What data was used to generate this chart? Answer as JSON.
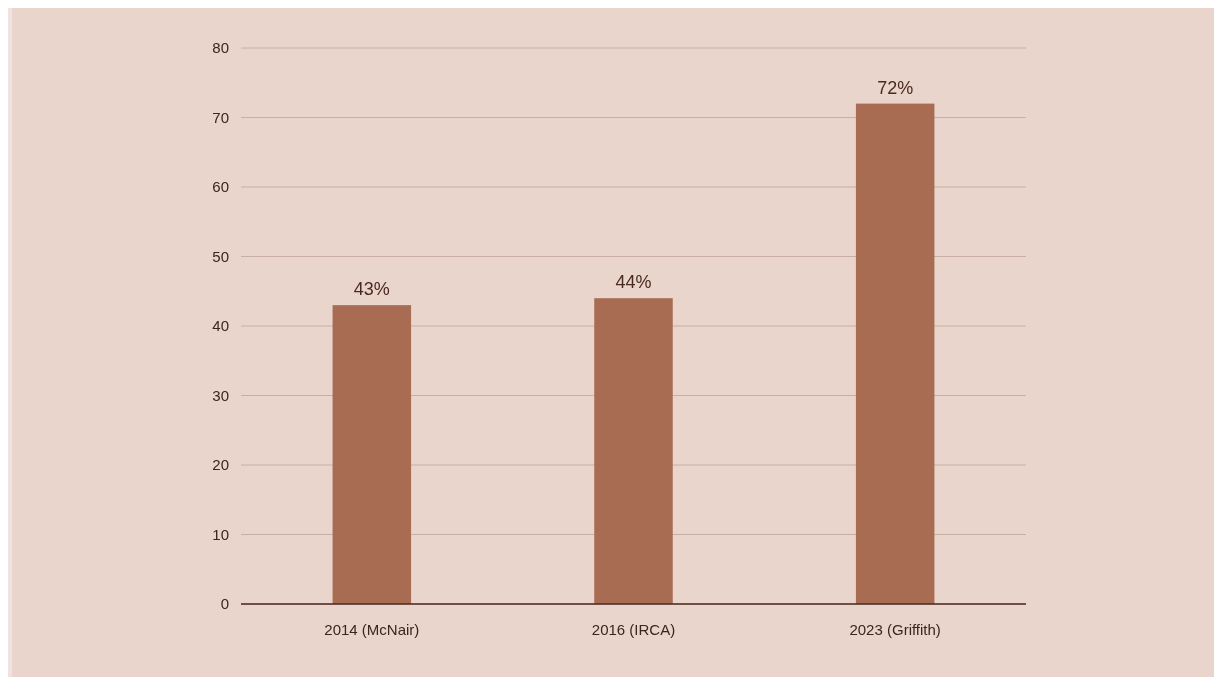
{
  "chart_data": {
    "type": "bar",
    "categories": [
      "2014 (McNair)",
      "2016 (IRCA)",
      "2023 (Griffith)"
    ],
    "values": [
      43,
      44,
      72
    ],
    "value_labels": [
      "43%",
      "44%",
      "72%"
    ],
    "color": "#a86c52",
    "ylim": [
      0,
      80
    ],
    "yticks": [
      0,
      10,
      20,
      30,
      40,
      50,
      60,
      70,
      80
    ],
    "grid": "y"
  }
}
